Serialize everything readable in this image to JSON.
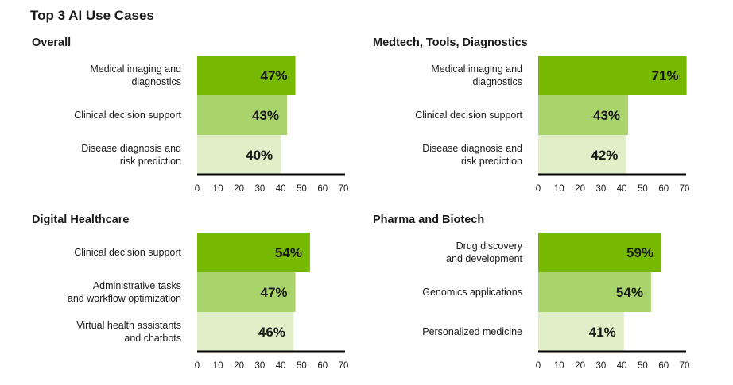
{
  "title": "Top 3 AI Use Cases",
  "colors": {
    "bar_rank_1": "#76b900",
    "bar_rank_2": "#a9d46b",
    "bar_rank_3": "#e0efc7",
    "axis": "#000000"
  },
  "chart_data": [
    {
      "type": "bar",
      "orientation": "horizontal",
      "title": "Overall",
      "categories": [
        "Medical imaging and\ndiagnostics",
        "Clinical decision support",
        "Disease diagnosis and\nrisk prediction"
      ],
      "values": [
        47,
        43,
        40
      ],
      "value_labels": [
        "47%",
        "43%",
        "40%"
      ],
      "xlim": [
        0,
        70
      ],
      "xticks": [
        0,
        10,
        20,
        30,
        40,
        50,
        60,
        70
      ]
    },
    {
      "type": "bar",
      "orientation": "horizontal",
      "title": "Medtech, Tools, Diagnostics",
      "categories": [
        "Medical imaging and\ndiagnostics",
        "Clinical decision support",
        "Disease diagnosis and\nrisk prediction"
      ],
      "values": [
        71,
        43,
        42
      ],
      "value_labels": [
        "71%",
        "43%",
        "42%"
      ],
      "xlim": [
        0,
        70
      ],
      "xticks": [
        0,
        10,
        20,
        30,
        40,
        50,
        60,
        70
      ]
    },
    {
      "type": "bar",
      "orientation": "horizontal",
      "title": "Digital Healthcare",
      "categories": [
        "Clinical decision support",
        "Administrative tasks\nand workflow optimization",
        "Virtual health assistants\nand chatbots"
      ],
      "values": [
        54,
        47,
        46
      ],
      "value_labels": [
        "54%",
        "47%",
        "46%"
      ],
      "xlim": [
        0,
        70
      ],
      "xticks": [
        0,
        10,
        20,
        30,
        40,
        50,
        60,
        70
      ]
    },
    {
      "type": "bar",
      "orientation": "horizontal",
      "title": "Pharma and Biotech",
      "categories": [
        "Drug discovery\nand development",
        "Genomics applications",
        "Personalized medicine"
      ],
      "values": [
        59,
        54,
        41
      ],
      "value_labels": [
        "59%",
        "54%",
        "41%"
      ],
      "xlim": [
        0,
        70
      ],
      "xticks": [
        0,
        10,
        20,
        30,
        40,
        50,
        60,
        70
      ]
    }
  ]
}
